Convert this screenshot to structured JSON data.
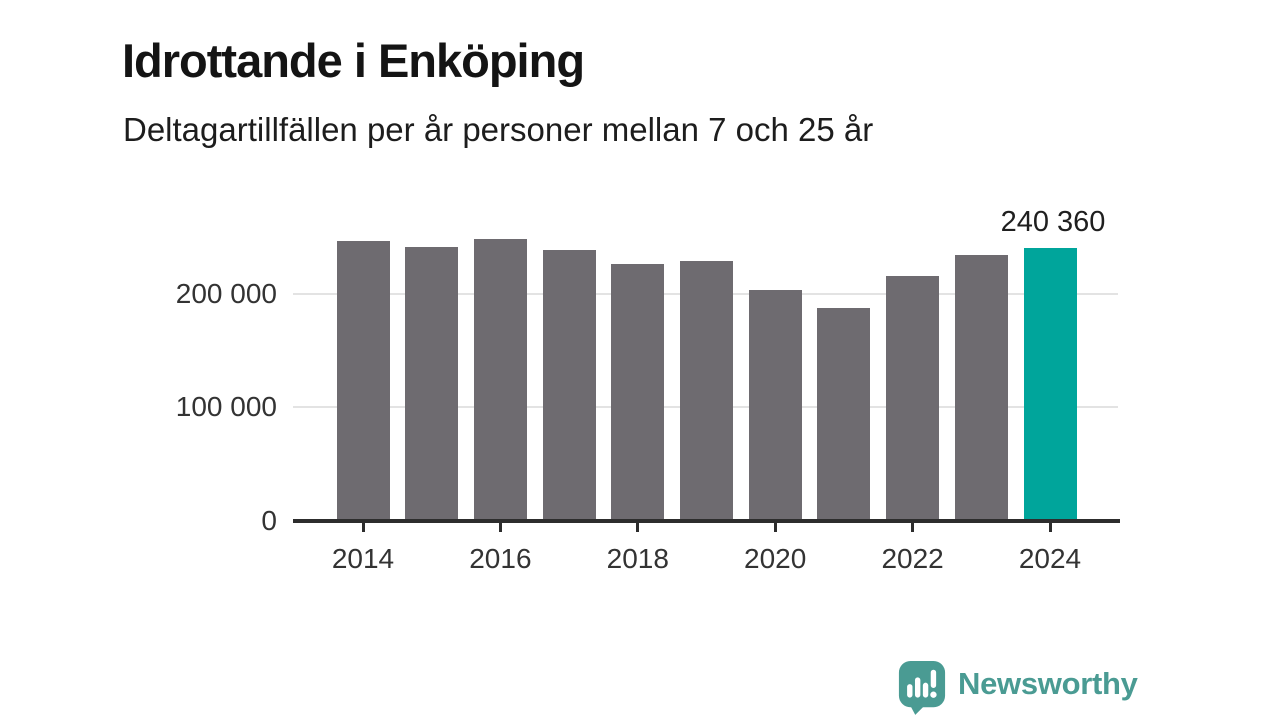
{
  "chart_data": {
    "type": "bar",
    "title": "Idrottande i Enköping",
    "subtitle": "Deltagartillfällen per år personer mellan 7 och 25 år",
    "categories": [
      2014,
      2015,
      2016,
      2017,
      2018,
      2019,
      2020,
      2021,
      2022,
      2023,
      2024
    ],
    "values": [
      246000,
      241000,
      248000,
      238000,
      226000,
      229000,
      203000,
      187000,
      215000,
      234000,
      240360
    ],
    "highlight_index": 10,
    "highlight_label": "240 360",
    "yticks": [
      {
        "value": 0,
        "label": "0"
      },
      {
        "value": 100000,
        "label": "100 000"
      },
      {
        "value": 200000,
        "label": "200 000"
      }
    ],
    "xtick_labels": [
      "2014",
      "2016",
      "2018",
      "2020",
      "2022",
      "2024"
    ],
    "ylim": [
      0,
      282000
    ],
    "grid": "horizontal",
    "legend": "none",
    "colors": {
      "bar": "#6e6b70",
      "highlight": "#00a59b",
      "axis": "#2d2d2d",
      "gridline": "#e3e3e3",
      "brand": "#4a9b93"
    }
  },
  "footer": {
    "brand": "Newsworthy"
  }
}
